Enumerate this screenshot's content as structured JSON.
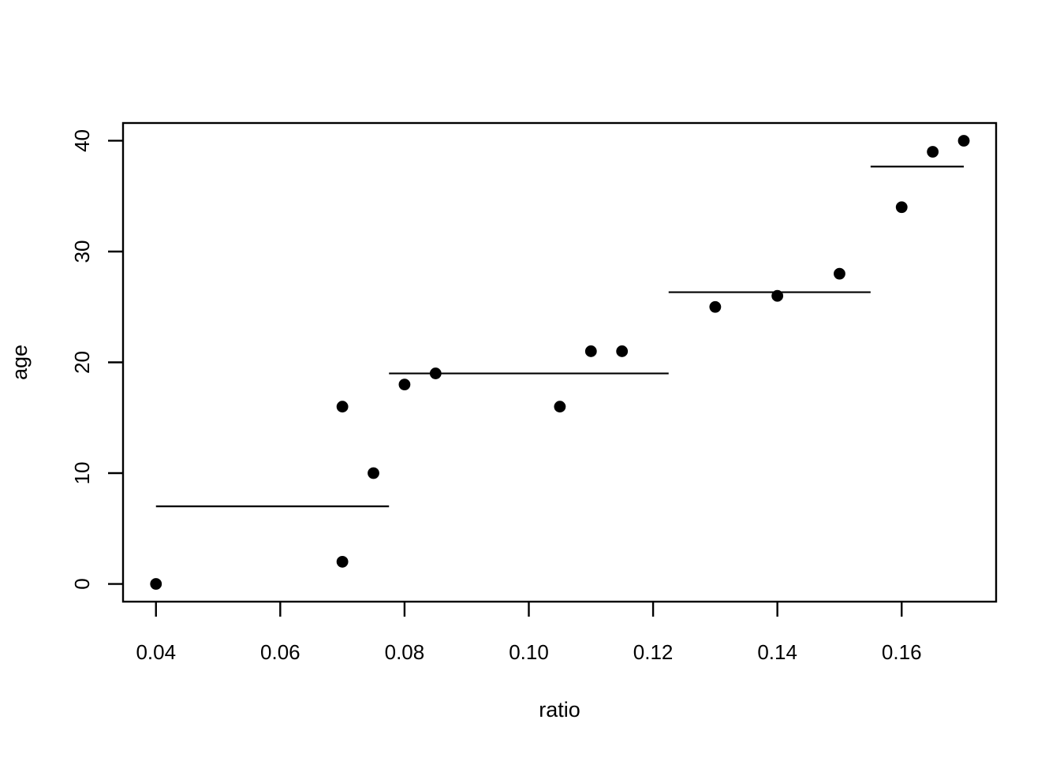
{
  "figure": {
    "background_color": "#ffffff",
    "foreground_color": "#000000"
  },
  "chart_data": {
    "type": "scatter",
    "title": "",
    "xlabel": "ratio",
    "ylabel": "age",
    "grid": false,
    "legend": null,
    "xlim": [
      0.0347,
      0.1752
    ],
    "ylim": [
      -1.6,
      41.6
    ],
    "x_ticks": [
      {
        "value": 0.04,
        "label": "0.04"
      },
      {
        "value": 0.06,
        "label": "0.06"
      },
      {
        "value": 0.08,
        "label": "0.08"
      },
      {
        "value": 0.1,
        "label": "0.10"
      },
      {
        "value": 0.12,
        "label": "0.12"
      },
      {
        "value": 0.14,
        "label": "0.14"
      },
      {
        "value": 0.16,
        "label": "0.16"
      }
    ],
    "y_ticks": [
      {
        "value": 0,
        "label": "0"
      },
      {
        "value": 10,
        "label": "10"
      },
      {
        "value": 20,
        "label": "20"
      },
      {
        "value": 30,
        "label": "30"
      },
      {
        "value": 40,
        "label": "40"
      }
    ],
    "points": [
      {
        "x": 0.04,
        "y": 0
      },
      {
        "x": 0.07,
        "y": 2
      },
      {
        "x": 0.07,
        "y": 16
      },
      {
        "x": 0.075,
        "y": 10
      },
      {
        "x": 0.08,
        "y": 18
      },
      {
        "x": 0.085,
        "y": 19
      },
      {
        "x": 0.105,
        "y": 16
      },
      {
        "x": 0.11,
        "y": 21
      },
      {
        "x": 0.115,
        "y": 21
      },
      {
        "x": 0.13,
        "y": 25
      },
      {
        "x": 0.14,
        "y": 26
      },
      {
        "x": 0.15,
        "y": 28
      },
      {
        "x": 0.16,
        "y": 34
      },
      {
        "x": 0.165,
        "y": 39
      },
      {
        "x": 0.17,
        "y": 40
      }
    ],
    "fit_segments": [
      {
        "x1": 0.04,
        "x2": 0.0775,
        "y": 7.0
      },
      {
        "x1": 0.0775,
        "x2": 0.1225,
        "y": 19.0
      },
      {
        "x1": 0.1225,
        "x2": 0.155,
        "y": 26.33
      },
      {
        "x1": 0.155,
        "x2": 0.17,
        "y": 37.67
      }
    ],
    "marker": {
      "shape": "filled-circle",
      "radius_px": 7.4,
      "color": "#000000"
    },
    "line_color": "#000000"
  }
}
